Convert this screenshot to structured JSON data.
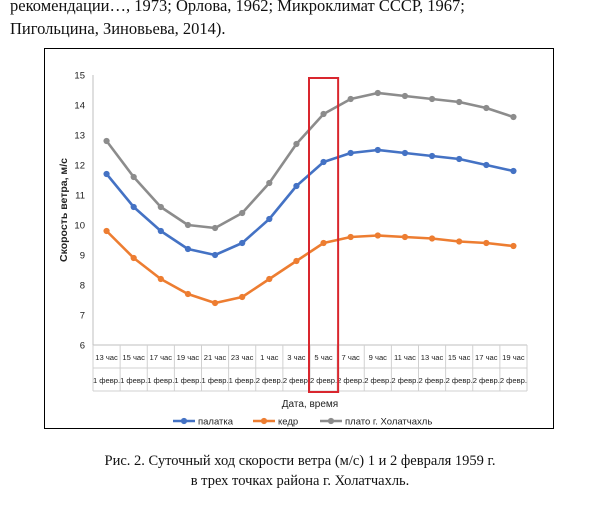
{
  "paragraph": {
    "line1": "рекомендации…, 1973; Орлова, 1962; Микроклимат СССР, 1967;",
    "line2": "Пигольцина, Зиновьева, 2014)."
  },
  "caption": {
    "line1": "Рис. 2. Суточный ход скорости ветра (м/с) 1 и 2 февраля 1959 г.",
    "line2": "в трех точках района г. Холатчахль."
  },
  "chart_data": {
    "type": "line",
    "xlabel": "Дата, время",
    "ylabel": "Скорость ветра, м/с",
    "ylim": [
      6,
      15
    ],
    "yticks": [
      6,
      7,
      8,
      9,
      10,
      11,
      12,
      13,
      14,
      15
    ],
    "grid": "vertical",
    "legend": "bottom",
    "categories": [
      {
        "time": "13 час",
        "date": "1 февр."
      },
      {
        "time": "15 час",
        "date": "1 февр."
      },
      {
        "time": "17 час",
        "date": "1 февр."
      },
      {
        "time": "19 час",
        "date": "1 февр."
      },
      {
        "time": "21 час",
        "date": "1 февр."
      },
      {
        "time": "23 час",
        "date": "1 февр."
      },
      {
        "time": "1 час",
        "date": "2 февр."
      },
      {
        "time": "3 час",
        "date": "2 февр."
      },
      {
        "time": "5 час",
        "date": "2 февр."
      },
      {
        "time": "7 час",
        "date": "2 февр."
      },
      {
        "time": "9 час",
        "date": "2 февр."
      },
      {
        "time": "11 час",
        "date": "2 февр."
      },
      {
        "time": "13 час",
        "date": "2 февр."
      },
      {
        "time": "15 час",
        "date": "2 февр."
      },
      {
        "time": "17 час",
        "date": "2 февр."
      },
      {
        "time": "19 час",
        "date": "2 февр."
      }
    ],
    "series": [
      {
        "name": "палатка",
        "color": "#4472c4",
        "values": [
          11.7,
          10.6,
          9.8,
          9.2,
          9.0,
          9.4,
          10.2,
          11.3,
          12.1,
          12.4,
          12.5,
          12.4,
          12.3,
          12.2,
          12.0,
          11.8
        ]
      },
      {
        "name": "кедр",
        "color": "#ed7d31",
        "values": [
          9.8,
          8.9,
          8.2,
          7.7,
          7.4,
          7.6,
          8.2,
          8.8,
          9.4,
          9.6,
          9.65,
          9.6,
          9.55,
          9.45,
          9.4,
          9.3
        ]
      },
      {
        "name": "плато г. Холатчахль",
        "color": "#8c8c8c",
        "values": [
          12.8,
          11.6,
          10.6,
          10.0,
          9.9,
          10.4,
          11.4,
          12.7,
          13.7,
          14.2,
          14.4,
          14.3,
          14.2,
          14.1,
          13.9,
          13.6
        ]
      }
    ],
    "highlight": {
      "category_index": 8,
      "color": "#d9262e"
    }
  }
}
